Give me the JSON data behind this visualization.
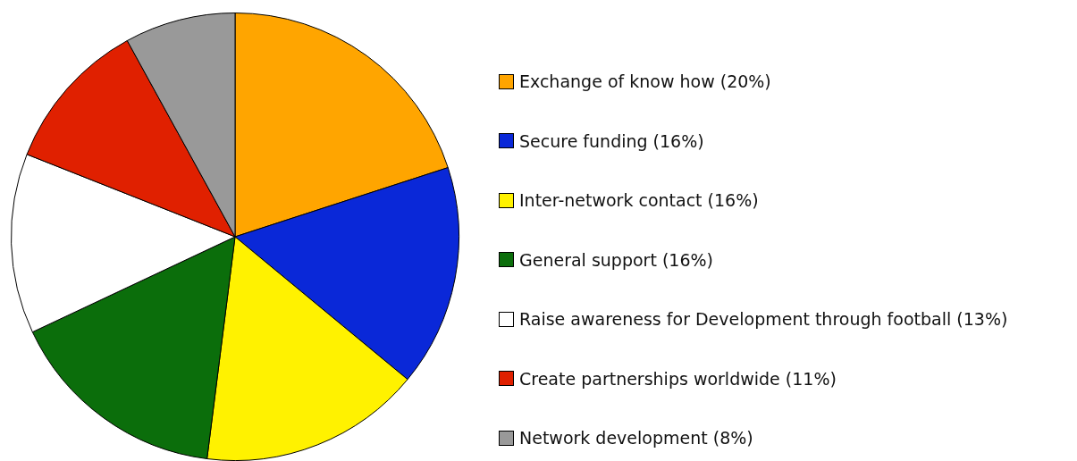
{
  "chart_data": {
    "type": "pie",
    "categories": [
      "Exchange of know how (20%)",
      "Secure funding (16%)",
      "Inter-network contact (16%)",
      "General support (16%)",
      "Raise awareness for Development through football (13%)",
      "Create partnerships worldwide (11%)",
      "Network development (8%)"
    ],
    "values": [
      20,
      16,
      16,
      16,
      13,
      11,
      8
    ],
    "colors": [
      "#ffa500",
      "#0a28d8",
      "#fff200",
      "#0b6e0b",
      "#ffffff",
      "#e02000",
      "#999999"
    ],
    "legend": "right"
  }
}
